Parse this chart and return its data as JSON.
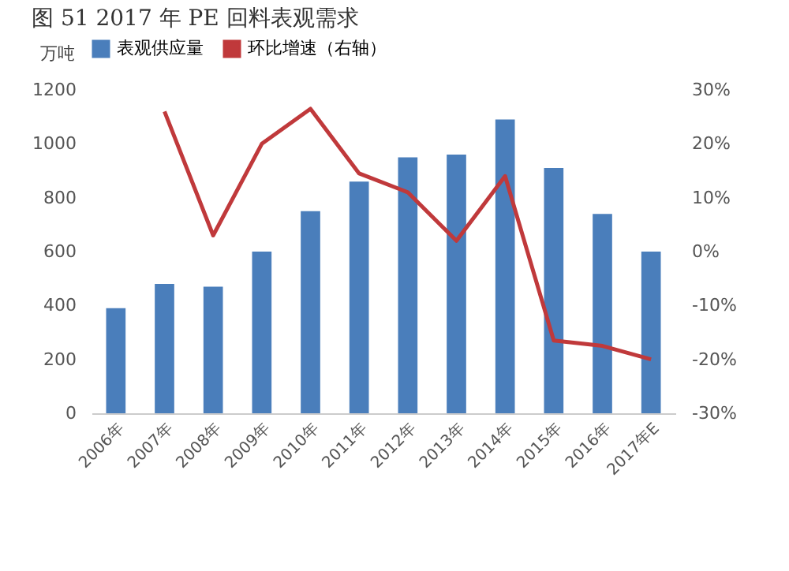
{
  "chart_data": {
    "type": "bar",
    "title": "图 51    2017 年 PE 回料表观需求",
    "ylabel": "万吨",
    "categories": [
      "2006年",
      "2007年",
      "2008年",
      "2009年",
      "2010年",
      "2011年",
      "2012年",
      "2013年",
      "2014年",
      "2015年",
      "2016年",
      "2017年E"
    ],
    "series": [
      {
        "name": "表观供应量",
        "color": "#4a7ebb",
        "values": [
          390,
          480,
          470,
          600,
          750,
          860,
          950,
          960,
          1090,
          910,
          740,
          600
        ]
      },
      {
        "name": "环比增速（右轴）",
        "type": "line",
        "axis": "y2",
        "color": "#c0393b",
        "values": [
          null,
          26,
          3,
          20,
          26.5,
          14.5,
          11,
          2,
          14,
          -16.5,
          -17.5,
          -20
        ]
      }
    ],
    "ylim": [
      0,
      1200
    ],
    "yticks": [
      0,
      200,
      400,
      600,
      800,
      1000,
      1200
    ],
    "y2lim": [
      -30,
      30
    ],
    "y2ticks": [
      {
        "value": -30,
        "label": "-30%"
      },
      {
        "value": -20,
        "label": "-20%"
      },
      {
        "value": -10,
        "label": "-10%"
      },
      {
        "value": 0,
        "label": "0%"
      },
      {
        "value": 10,
        "label": "10%"
      },
      {
        "value": 20,
        "label": "20%"
      },
      {
        "value": 30,
        "label": "30%"
      }
    ],
    "grid": false,
    "legend": "top"
  }
}
